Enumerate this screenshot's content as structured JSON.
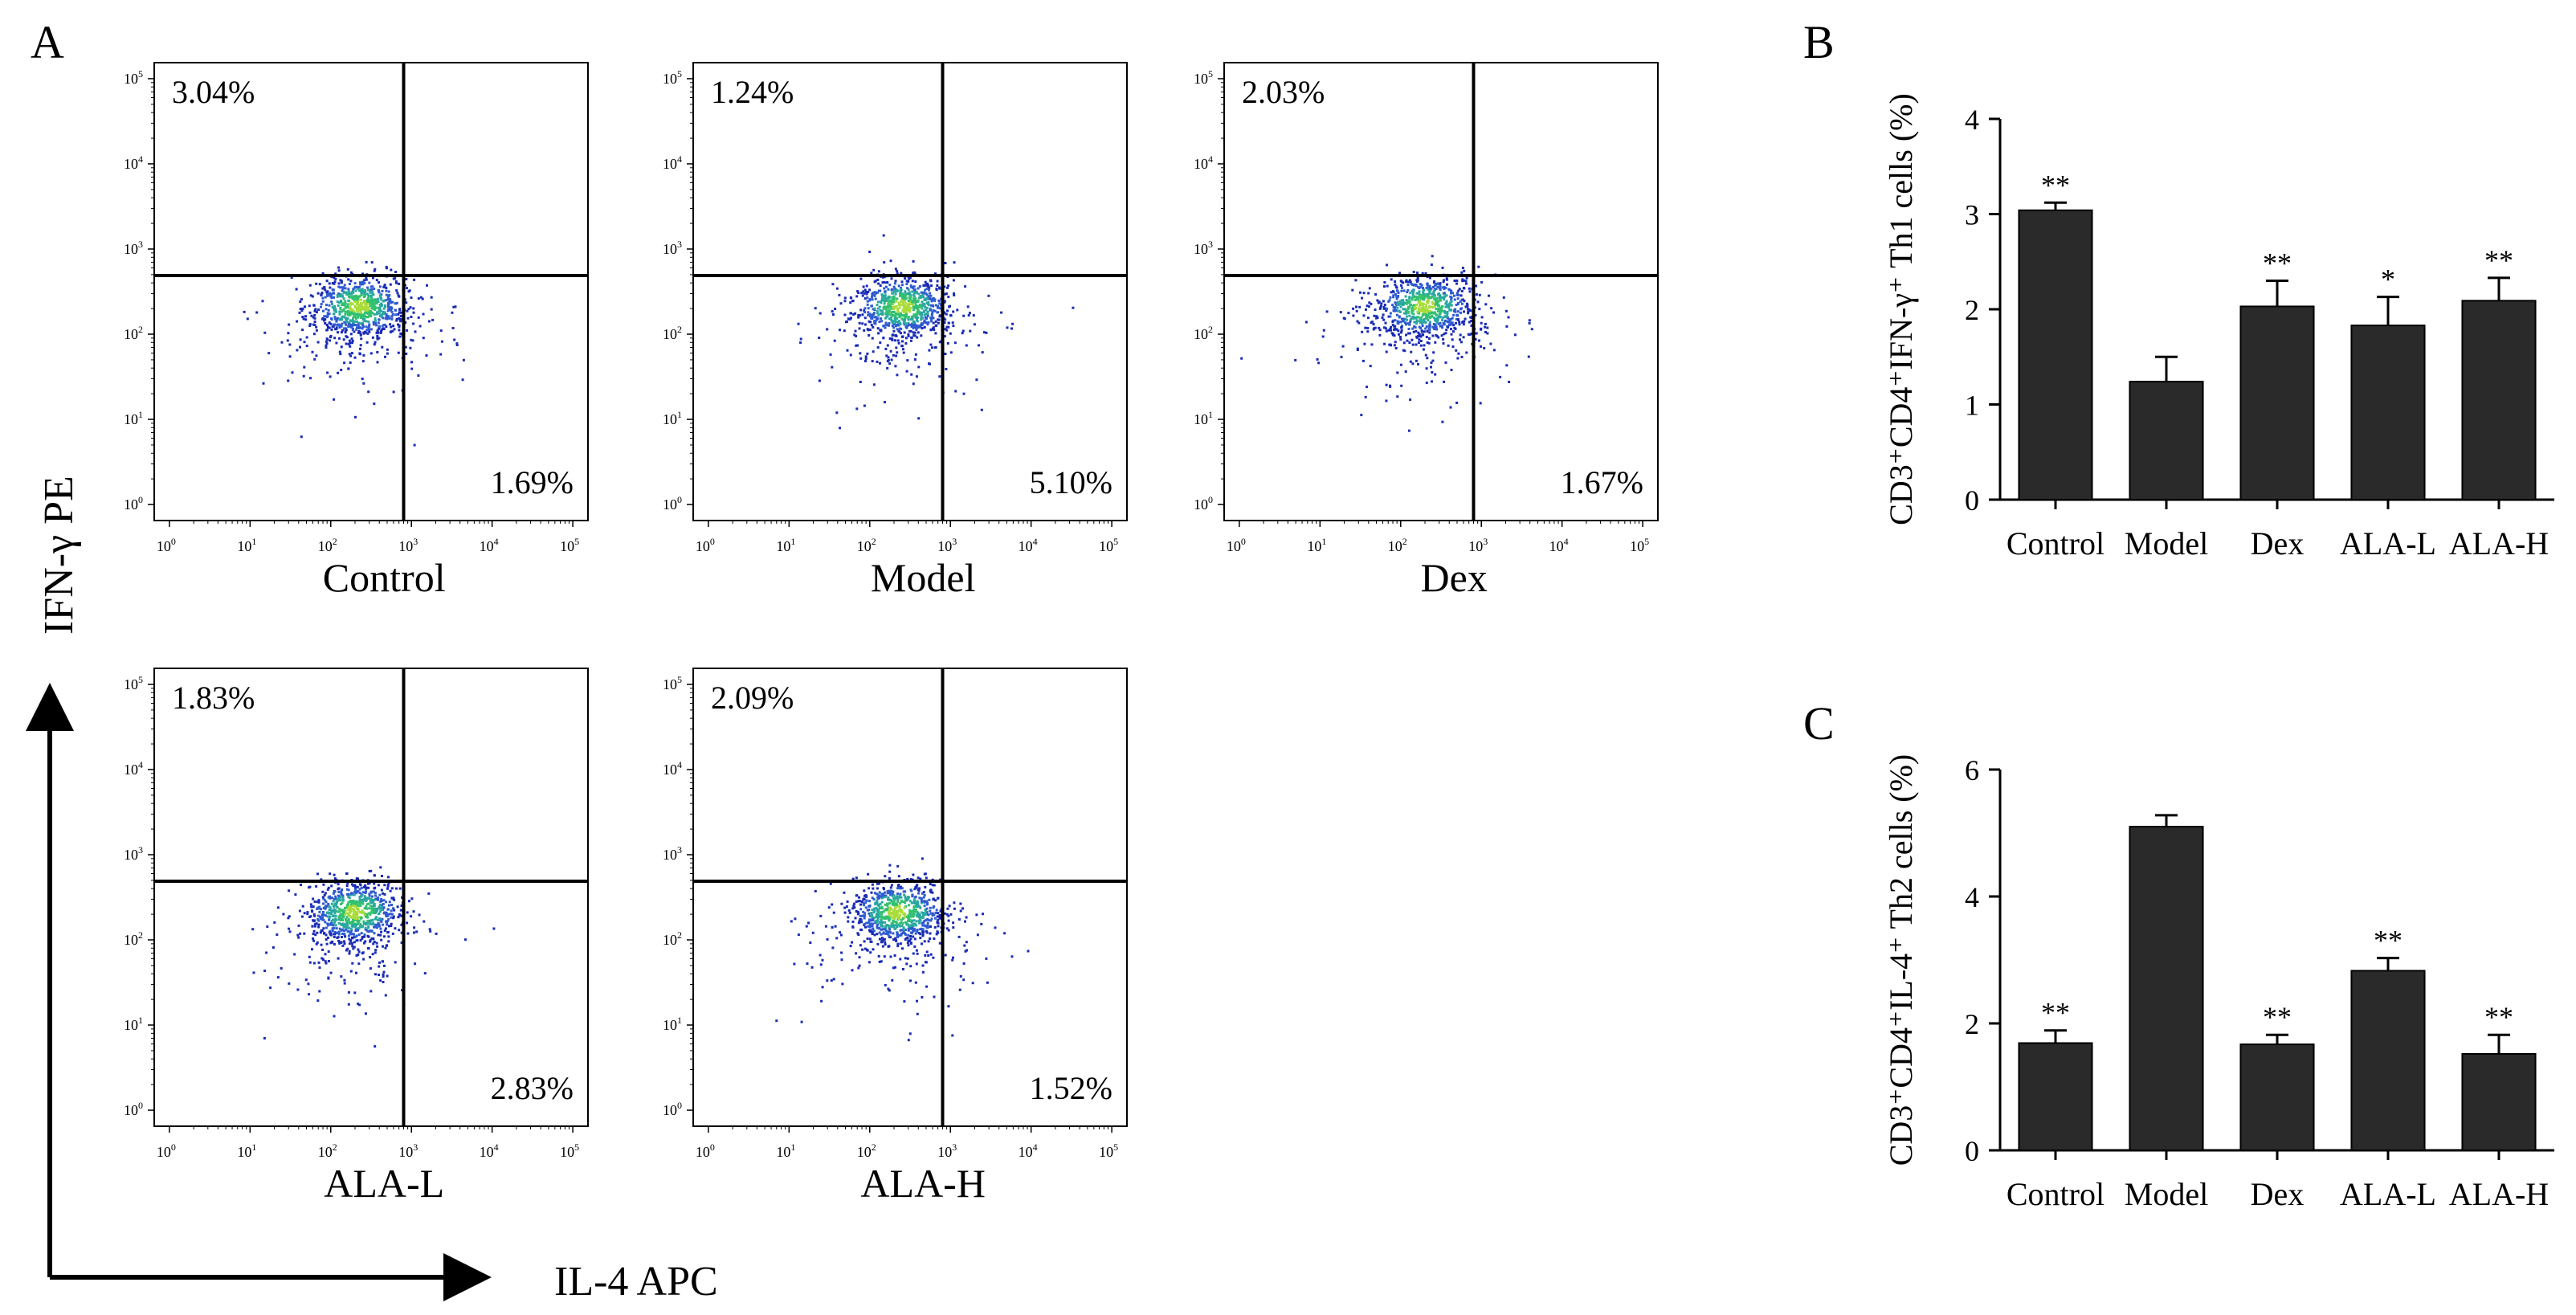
{
  "panel_letters": {
    "a": "A",
    "b": "B",
    "c": "C"
  },
  "flow": {
    "y_axis_label": "IFN-γ PE",
    "x_axis_label": "IL-4 APC",
    "tick_base": "10",
    "tick_exponents": [
      "0",
      "1",
      "2",
      "3",
      "4",
      "5"
    ],
    "dot_colors": [
      "#1a2bb5",
      "#2f5bd0",
      "#2aa7a0",
      "#33c070",
      "#a9dc3a"
    ],
    "plots": [
      {
        "group": "Control",
        "upper_left": "3.04%",
        "lower_right": "1.69%"
      },
      {
        "group": "Model",
        "upper_left": "1.24%",
        "lower_right": "5.10%"
      },
      {
        "group": "Dex",
        "upper_left": "2.03%",
        "lower_right": "1.67%"
      },
      {
        "group": "ALA-L",
        "upper_left": "1.83%",
        "lower_right": "2.83%"
      },
      {
        "group": "ALA-H",
        "upper_left": "2.09%",
        "lower_right": "1.52%"
      }
    ]
  },
  "chart_data": [
    {
      "type": "bar",
      "panel": "B",
      "ylabel": "CD3⁺CD4⁺IFN-γ⁺ Th1 cells (%)",
      "categories": [
        "Control",
        "Model",
        "Dex",
        "ALA-L",
        "ALA-H"
      ],
      "values": [
        3.04,
        1.24,
        2.03,
        1.83,
        2.09
      ],
      "errors": [
        0.08,
        0.26,
        0.27,
        0.3,
        0.24
      ],
      "significance": [
        "**",
        "",
        "**",
        "*",
        "**"
      ],
      "ylim": [
        0,
        4
      ],
      "yticks": [
        0,
        1,
        2,
        3,
        4
      ],
      "bar_color": "#2a2a2a"
    },
    {
      "type": "bar",
      "panel": "C",
      "ylabel": "CD3⁺CD4⁺IL-4⁺ Th2 cells (%)",
      "categories": [
        "Control",
        "Model",
        "Dex",
        "ALA-L",
        "ALA-H"
      ],
      "values": [
        1.69,
        5.1,
        1.67,
        2.83,
        1.52
      ],
      "errors": [
        0.2,
        0.18,
        0.15,
        0.2,
        0.3
      ],
      "significance": [
        "**",
        "",
        "**",
        "**",
        "**"
      ],
      "ylim": [
        0,
        6
      ],
      "yticks": [
        0,
        2,
        4,
        6
      ],
      "bar_color": "#2a2a2a"
    }
  ]
}
